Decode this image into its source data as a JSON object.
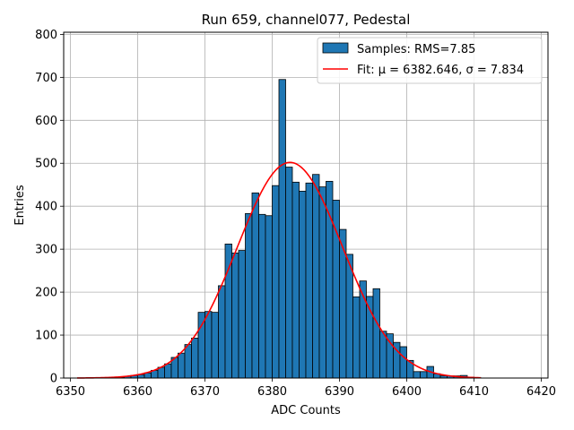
{
  "chart_data": {
    "type": "bar",
    "title": "Run 659, channel077, Pedestal",
    "xlabel": "ADC Counts",
    "ylabel": "Entries",
    "xlim": [
      6349,
      6421
    ],
    "ylim": [
      0,
      805
    ],
    "xticks": [
      6350,
      6360,
      6370,
      6380,
      6390,
      6400,
      6410,
      6420
    ],
    "yticks": [
      0,
      100,
      200,
      300,
      400,
      500,
      600,
      700,
      800
    ],
    "grid": true,
    "legend_position": "top-right",
    "bar_color": "#1f77b4",
    "fit_color": "#ff0000",
    "bin_width": 1,
    "histogram": {
      "name": "Samples: RMS=7.85",
      "bin_left": [
        6355,
        6356,
        6357,
        6358,
        6359,
        6360,
        6361,
        6362,
        6363,
        6364,
        6365,
        6366,
        6367,
        6368,
        6369,
        6370,
        6371,
        6372,
        6373,
        6374,
        6375,
        6376,
        6377,
        6378,
        6379,
        6380,
        6381,
        6382,
        6383,
        6384,
        6385,
        6386,
        6387,
        6388,
        6389,
        6390,
        6391,
        6392,
        6393,
        6394,
        6395,
        6396,
        6397,
        6398,
        6399,
        6400,
        6401,
        6402,
        6403,
        6404,
        6405,
        6406,
        6407,
        6408,
        6409,
        6410
      ],
      "counts": [
        1,
        1,
        2,
        4,
        6,
        8,
        12,
        18,
        25,
        33,
        48,
        58,
        78,
        93,
        153,
        155,
        153,
        215,
        312,
        291,
        297,
        383,
        431,
        381,
        378,
        448,
        695,
        491,
        456,
        435,
        454,
        474,
        445,
        458,
        414,
        346,
        288,
        189,
        226,
        190,
        208,
        109,
        103,
        83,
        73,
        41,
        15,
        15,
        27,
        10,
        5,
        5,
        5,
        6,
        2,
        1
      ]
    },
    "fit": {
      "name": "Fit: μ = 6382.646, σ = 7.834",
      "mu": 6382.646,
      "sigma": 7.834,
      "amplitude": 502,
      "x_range": [
        6351,
        6411
      ]
    }
  }
}
